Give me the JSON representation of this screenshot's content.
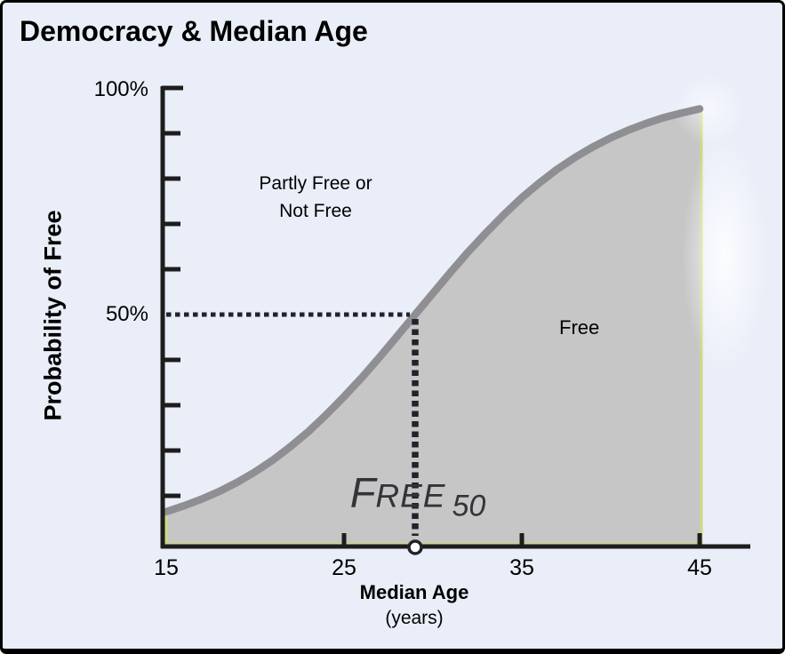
{
  "title": "Democracy & Median Age",
  "y_axis": {
    "label": "Probability of Free",
    "tick_top": "100%",
    "tick_mid": "50%"
  },
  "x_axis": {
    "label": "Median Age",
    "sublabel": "(years)",
    "ticks": [
      "15",
      "25",
      "35",
      "45"
    ]
  },
  "annotations": {
    "region_above_line1": "Partly Free or",
    "region_above_line2": "Not Free",
    "region_below": "Free",
    "free50_first": "F",
    "free50_rest": "REE",
    "free50_sub": "50"
  },
  "colors": {
    "background": "#e9eef8",
    "area_fill": "#c6c6c6",
    "curve_gray": "#8f8f93",
    "edge_green": "#cbdc80",
    "dotted_line": "#22222b",
    "axis": "#1d1d1d"
  },
  "chart_data": {
    "type": "area",
    "title": "Democracy & Median Age",
    "xlabel": "Median Age (years)",
    "ylabel": "Probability of Free",
    "xlim": [
      15,
      45
    ],
    "ylim_pct": [
      0,
      100
    ],
    "x_tick_values": [
      15,
      25,
      35,
      45
    ],
    "y_tick_step_pct": 10,
    "y_tick_labels_shown": [
      "100%",
      "50%"
    ],
    "ages": [
      15,
      16,
      17,
      18,
      19,
      20,
      21,
      22,
      23,
      24,
      25,
      26,
      27,
      28,
      29,
      30,
      31,
      32,
      33,
      34,
      35,
      36,
      37,
      38,
      39,
      40,
      41,
      42,
      43,
      44,
      45
    ],
    "probability_pct": [
      6.5,
      7.8,
      9.3,
      11.0,
      13.0,
      15.3,
      17.9,
      20.9,
      24.2,
      27.9,
      31.9,
      36.1,
      40.6,
      45.3,
      50.0,
      54.7,
      59.4,
      63.9,
      68.1,
      72.1,
      75.8,
      79.1,
      82.1,
      84.7,
      87.0,
      89.0,
      90.7,
      92.2,
      93.5,
      94.5,
      95.4
    ],
    "reference_point": {
      "median_age_years": 29,
      "probability_pct": 50,
      "label": "FREE 50"
    },
    "regions": [
      {
        "label": "Partly Free or Not Free",
        "position": "above curve"
      },
      {
        "label": "Free",
        "position": "below curve (shaded)"
      }
    ],
    "legend": "none",
    "grid": false
  }
}
